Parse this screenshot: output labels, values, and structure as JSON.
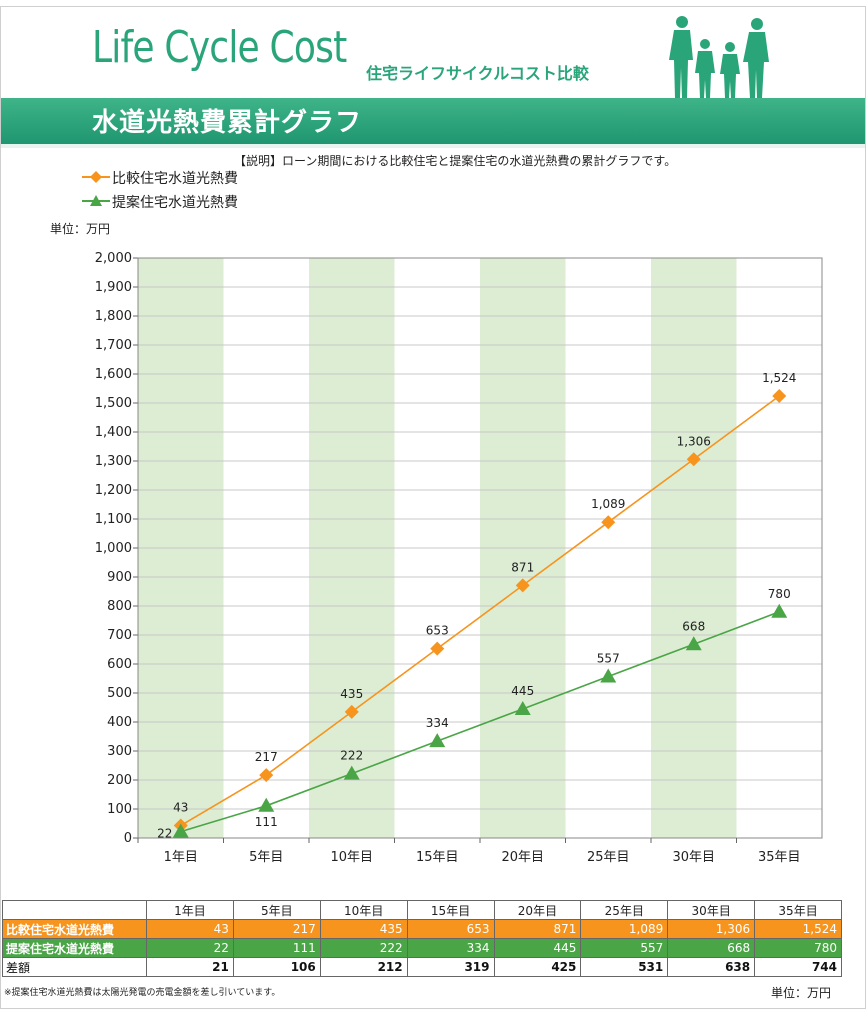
{
  "header": {
    "logo_text": "Life Cycle Cost",
    "logo_subtitle": "住宅ライフサイクルコスト比較",
    "banner_title": "水道光熱費累計グラフ",
    "family_icon": "family-silhouette-icon"
  },
  "description": "【説明】ローン期間における比較住宅と提案住宅の水道光熱費の累計グラフです。",
  "unit_label": "単位：万円",
  "colors": {
    "brand": "#2aa57a",
    "series_compare": "#f7941e",
    "series_proposed": "#4aa546",
    "band": "#dcedd3"
  },
  "chart_data": {
    "type": "line",
    "categories": [
      "1年目",
      "5年目",
      "10年目",
      "15年目",
      "20年目",
      "25年目",
      "30年目",
      "35年目"
    ],
    "series": [
      {
        "name": "比較住宅水道光熱費",
        "marker": "diamond",
        "values": [
          43,
          217,
          435,
          653,
          871,
          1089,
          1306,
          1524
        ],
        "labels": [
          "43",
          "217",
          "435",
          "653",
          "871",
          "1,089",
          "1,306",
          "1,524"
        ]
      },
      {
        "name": "提案住宅水道光熱費",
        "marker": "triangle",
        "values": [
          22,
          111,
          222,
          334,
          445,
          557,
          668,
          780
        ],
        "labels": [
          "22",
          "111",
          "222",
          "334",
          "445",
          "557",
          "668",
          "780"
        ]
      }
    ],
    "ylim": [
      0,
      2000
    ],
    "yticks": [
      0,
      100,
      200,
      300,
      400,
      500,
      600,
      700,
      800,
      900,
      1000,
      1100,
      1200,
      1300,
      1400,
      1500,
      1600,
      1700,
      1800,
      1900,
      2000
    ],
    "ytick_labels": [
      "0",
      "100",
      "200",
      "300",
      "400",
      "500",
      "600",
      "700",
      "800",
      "900",
      "1,000",
      "1,100",
      "1,200",
      "1,300",
      "1,400",
      "1,500",
      "1,600",
      "1,700",
      "1,800",
      "1,900",
      "2,000"
    ],
    "shaded_categories": [
      "1年目",
      "10年目",
      "20年目",
      "30年目"
    ],
    "grid": true,
    "legend": "top-left"
  },
  "table": {
    "headers": [
      "",
      "1年目",
      "5年目",
      "10年目",
      "15年目",
      "20年目",
      "25年目",
      "30年目",
      "35年目"
    ],
    "rows": [
      {
        "label": "比較住宅水道光熱費",
        "values": [
          "43",
          "217",
          "435",
          "653",
          "871",
          "1,089",
          "1,306",
          "1,524"
        ]
      },
      {
        "label": "提案住宅水道光熱費",
        "values": [
          "22",
          "111",
          "222",
          "334",
          "445",
          "557",
          "668",
          "780"
        ]
      },
      {
        "label": "差額",
        "values": [
          "21",
          "106",
          "212",
          "319",
          "425",
          "531",
          "638",
          "744"
        ]
      }
    ]
  },
  "footnote": "※提案住宅水道光熱費は太陽光発電の売電金額を差し引いています。"
}
